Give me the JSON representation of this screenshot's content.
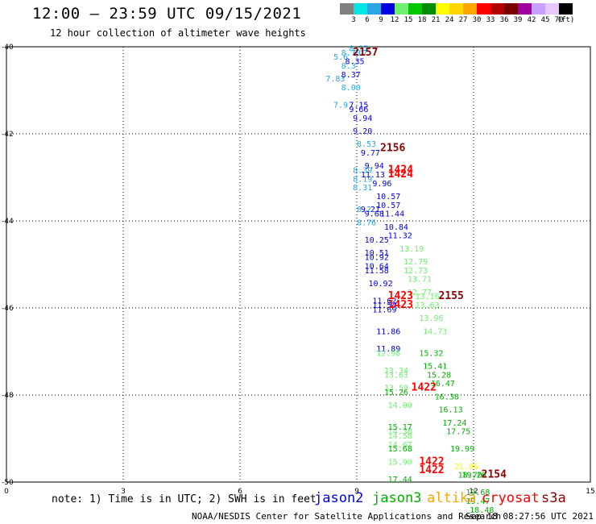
{
  "header": {
    "title": "12:00 — 23:59 UTC 09/15/2021",
    "subtitle": "12 hour collection of altimeter wave heights"
  },
  "color_scale": {
    "labels": [
      "3",
      "6",
      "9",
      "12",
      "15",
      "18",
      "21",
      "24",
      "27",
      "30",
      "33",
      "36",
      "39",
      "42",
      "45",
      "70",
      "(ft)"
    ],
    "colors": [
      "#808080",
      "#00e5e5",
      "#2aa6e6",
      "#0000e0",
      "#6ef06e",
      "#00c800",
      "#008c00",
      "#ffff00",
      "#ffd700",
      "#ffa500",
      "#ff0000",
      "#b40000",
      "#780000",
      "#a000a0",
      "#c8a0ff",
      "#e6c8ff",
      "#000000"
    ]
  },
  "footer": {
    "note": "note: 1) Time is in UTC; 2) SWH is in feet",
    "credit": "NOAA/NESDIS Center for Satellite Applications and Research",
    "timestamp": "Sep 18 08:27:56 UTC 2021"
  },
  "legend": [
    {
      "name": "jason2",
      "color": "#0000e0"
    },
    {
      "name": "jason3",
      "color": "#00b000"
    },
    {
      "name": "altika",
      "color": "#ffa500"
    },
    {
      "name": "cryosat",
      "color": "#ff0000"
    },
    {
      "name": "s3a",
      "color": "#8b0000"
    }
  ],
  "chart_data": {
    "type": "scatter",
    "title": "12:00 — 23:59 UTC 09/15/2021",
    "xlim": [
      0,
      15
    ],
    "ylim": [
      -50,
      -40
    ],
    "x_ticks": [
      "0",
      "3",
      "6",
      "9",
      "12",
      "15"
    ],
    "y_ticks": [
      "-40",
      "-42",
      "-44",
      "-46",
      "-48",
      "-50"
    ],
    "grid": true,
    "series": [
      {
        "name": "jason2",
        "color": "#2aa6e6",
        "points": [
          {
            "x": 8.8,
            "y": -40.1,
            "v": "8.37"
          },
          {
            "x": 8.6,
            "y": -40.2,
            "v": "8.70"
          },
          {
            "x": 8.9,
            "y": -40.2,
            "v": "8.7"
          },
          {
            "x": 8.4,
            "y": -40.3,
            "v": "5.6"
          },
          {
            "x": 8.6,
            "y": -40.5,
            "v": "8.3"
          },
          {
            "x": 8.2,
            "y": -40.8,
            "v": "7.83"
          },
          {
            "x": 8.6,
            "y": -41.0,
            "v": "8.00"
          },
          {
            "x": 8.4,
            "y": -41.4,
            "v": "7.9"
          },
          {
            "x": 9.0,
            "y": -42.3,
            "v": "8.53"
          },
          {
            "x": 8.9,
            "y": -42.9,
            "v": "8.39"
          },
          {
            "x": 8.9,
            "y": -43.1,
            "v": "8.19"
          },
          {
            "x": 8.9,
            "y": -43.3,
            "v": "8.31"
          },
          {
            "x": 9.0,
            "y": -43.8,
            "v": "8.2"
          },
          {
            "x": 9.0,
            "y": -44.1,
            "v": "8.76"
          }
        ]
      },
      {
        "name": "jason2",
        "color": "#0000e0",
        "points": [
          {
            "x": 8.7,
            "y": -40.4,
            "v": "8.35"
          },
          {
            "x": 8.6,
            "y": -40.7,
            "v": "8.37"
          },
          {
            "x": 8.8,
            "y": -41.4,
            "v": "7.15"
          },
          {
            "x": 8.8,
            "y": -41.5,
            "v": "9.66"
          },
          {
            "x": 8.9,
            "y": -41.7,
            "v": "9.94"
          },
          {
            "x": 8.9,
            "y": -42.0,
            "v": "9.20"
          },
          {
            "x": 9.1,
            "y": -42.5,
            "v": "9.77"
          },
          {
            "x": 9.2,
            "y": -42.8,
            "v": "9.94"
          },
          {
            "x": 9.1,
            "y": -43.0,
            "v": "11.13"
          },
          {
            "x": 9.4,
            "y": -43.2,
            "v": "9.96"
          },
          {
            "x": 9.5,
            "y": -43.5,
            "v": "10.57"
          },
          {
            "x": 9.5,
            "y": -43.7,
            "v": "10.57"
          },
          {
            "x": 9.1,
            "y": -43.8,
            "v": "9.21"
          },
          {
            "x": 9.2,
            "y": -43.9,
            "v": "9.68"
          },
          {
            "x": 9.6,
            "y": -43.9,
            "v": "11.44"
          },
          {
            "x": 9.7,
            "y": -44.2,
            "v": "10.84"
          },
          {
            "x": 9.8,
            "y": -44.4,
            "v": "11.32"
          },
          {
            "x": 9.2,
            "y": -44.5,
            "v": "10.25"
          },
          {
            "x": 9.2,
            "y": -44.8,
            "v": "10.51"
          },
          {
            "x": 9.2,
            "y": -44.9,
            "v": "10.92"
          },
          {
            "x": 9.2,
            "y": -45.1,
            "v": "10.64"
          },
          {
            "x": 9.2,
            "y": -45.2,
            "v": "11.58"
          },
          {
            "x": 9.3,
            "y": -45.5,
            "v": "10.92"
          },
          {
            "x": 9.4,
            "y": -45.9,
            "v": "11.62"
          },
          {
            "x": 9.4,
            "y": -46.0,
            "v": "11.54"
          },
          {
            "x": 9.4,
            "y": -46.1,
            "v": "11.69"
          },
          {
            "x": 9.5,
            "y": -46.6,
            "v": "11.86"
          },
          {
            "x": 9.5,
            "y": -47.0,
            "v": "11.89"
          }
        ]
      },
      {
        "name": "jason3",
        "color": "#6ef06e",
        "points": [
          {
            "x": 10.1,
            "y": -44.7,
            "v": "13.19"
          },
          {
            "x": 10.2,
            "y": -45.0,
            "v": "12.79"
          },
          {
            "x": 10.2,
            "y": -45.2,
            "v": "12.73"
          },
          {
            "x": 10.3,
            "y": -45.4,
            "v": "13.71"
          },
          {
            "x": 10.3,
            "y": -45.7,
            "v": "12.77"
          },
          {
            "x": 10.5,
            "y": -45.8,
            "v": "13.16"
          },
          {
            "x": 10.5,
            "y": -46.0,
            "v": "13.63"
          },
          {
            "x": 10.6,
            "y": -46.3,
            "v": "13.96"
          },
          {
            "x": 10.7,
            "y": -46.6,
            "v": "14.73"
          },
          {
            "x": 9.5,
            "y": -47.1,
            "v": "12.98"
          },
          {
            "x": 9.7,
            "y": -47.5,
            "v": "13.34"
          },
          {
            "x": 9.7,
            "y": -47.6,
            "v": "13.63"
          },
          {
            "x": 9.7,
            "y": -47.9,
            "v": "13.59"
          },
          {
            "x": 9.8,
            "y": -48.3,
            "v": "14.00"
          },
          {
            "x": 9.8,
            "y": -48.9,
            "v": "14.38"
          },
          {
            "x": 9.8,
            "y": -49.0,
            "v": "14.58"
          },
          {
            "x": 9.8,
            "y": -49.2,
            "v": "14.67"
          },
          {
            "x": 9.8,
            "y": -49.6,
            "v": "15.90"
          }
        ]
      },
      {
        "name": "jason3",
        "color": "#00b000",
        "points": [
          {
            "x": 10.6,
            "y": -47.1,
            "v": "15.32"
          },
          {
            "x": 10.7,
            "y": -47.4,
            "v": "15.41"
          },
          {
            "x": 10.8,
            "y": -47.6,
            "v": "15.28"
          },
          {
            "x": 10.9,
            "y": -47.8,
            "v": "16.47"
          },
          {
            "x": 11.0,
            "y": -48.1,
            "v": "16.38"
          },
          {
            "x": 11.1,
            "y": -48.4,
            "v": "16.13"
          },
          {
            "x": 9.7,
            "y": -48.0,
            "v": "15.26"
          },
          {
            "x": 11.2,
            "y": -48.7,
            "v": "17.24"
          },
          {
            "x": 9.8,
            "y": -48.8,
            "v": "15.17"
          },
          {
            "x": 11.3,
            "y": -48.9,
            "v": "17.75"
          },
          {
            "x": 11.4,
            "y": -49.3,
            "v": "19.99"
          },
          {
            "x": 9.8,
            "y": -49.3,
            "v": "15.68"
          },
          {
            "x": 11.6,
            "y": -49.9,
            "v": "18.70"
          },
          {
            "x": 11.7,
            "y": -49.9,
            "v": "19.26"
          },
          {
            "x": 11.8,
            "y": -50.3,
            "v": "19.68"
          },
          {
            "x": 9.8,
            "y": -50.0,
            "v": "17.44"
          },
          {
            "x": 11.8,
            "y": -50.5,
            "v": "19.47"
          },
          {
            "x": 11.9,
            "y": -50.7,
            "v": "18.48"
          }
        ]
      },
      {
        "name": "altika",
        "color": "#ffff00",
        "points": [
          {
            "x": 11.5,
            "y": -49.7,
            "v": "21.06"
          }
        ]
      },
      {
        "name": "cryosat",
        "color": "#ff0000",
        "points": [
          {
            "x": 9.8,
            "y": -42.9,
            "v": "1424",
            "time": true
          },
          {
            "x": 9.8,
            "y": -43.0,
            "v": "1424",
            "time": true
          },
          {
            "x": 9.8,
            "y": -45.8,
            "v": "1423",
            "time": true
          },
          {
            "x": 9.8,
            "y": -46.0,
            "v": "1423",
            "time": true
          },
          {
            "x": 10.4,
            "y": -47.9,
            "v": "1422",
            "time": true
          },
          {
            "x": 10.6,
            "y": -49.6,
            "v": "1422",
            "time": true
          },
          {
            "x": 10.6,
            "y": -49.8,
            "v": "1422",
            "time": true
          }
        ]
      },
      {
        "name": "s3a",
        "color": "#8b0000",
        "points": [
          {
            "x": 8.9,
            "y": -40.2,
            "v": "2157",
            "time": true
          },
          {
            "x": 9.6,
            "y": -42.4,
            "v": "2156",
            "time": true
          },
          {
            "x": 11.1,
            "y": -45.8,
            "v": "2155",
            "time": true
          },
          {
            "x": 12.2,
            "y": -49.9,
            "v": "2154",
            "time": true
          }
        ]
      }
    ]
  }
}
